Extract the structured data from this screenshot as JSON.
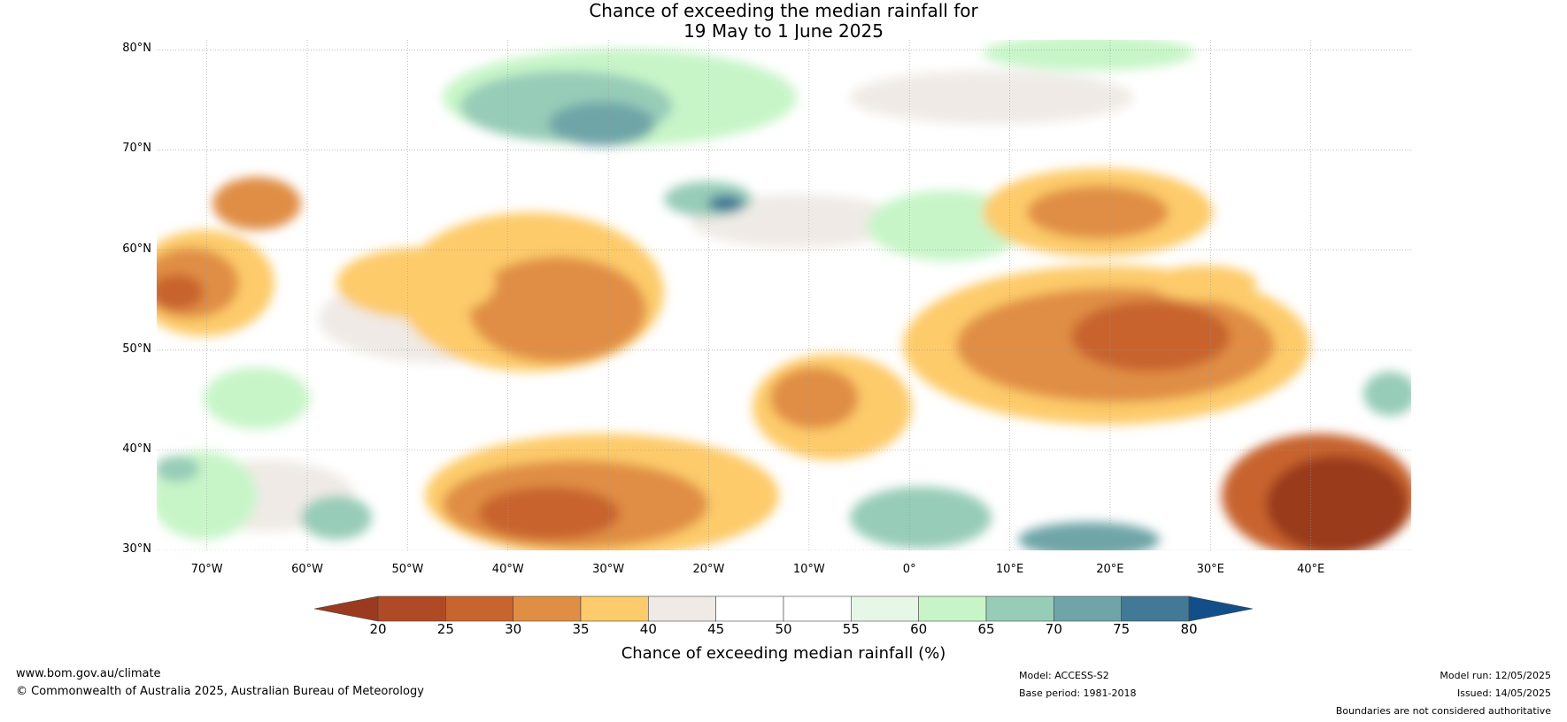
{
  "title": {
    "line1": "Chance of exceeding the median rainfall for",
    "line2": "19 May to 1 June 2025"
  },
  "map": {
    "lat_ticks": [
      "80°N",
      "70°N",
      "60°N",
      "50°N",
      "40°N",
      "30°N"
    ],
    "lon_ticks": [
      "70°W",
      "60°W",
      "50°W",
      "40°W",
      "30°W",
      "20°W",
      "10°W",
      "0°",
      "10°E",
      "20°E",
      "30°E",
      "40°E"
    ],
    "extent": {
      "lon_min": -75,
      "lon_max": 50,
      "lat_min": 30,
      "lat_max": 81
    }
  },
  "colorbar": {
    "label": "Chance of exceeding median rainfall (%)",
    "ticks": [
      "20",
      "25",
      "30",
      "35",
      "40",
      "45",
      "50",
      "55",
      "60",
      "65",
      "70",
      "75",
      "80"
    ],
    "colors": [
      "#9a3b1f",
      "#b04a26",
      "#c8642e",
      "#e08e44",
      "#fdcb6b",
      "#efeae5",
      "#ffffff",
      "#ffffff",
      "#e6f7e7",
      "#c7f5c8",
      "#97ccb8",
      "#6fa5a8",
      "#427996",
      "#124f8a"
    ]
  },
  "footer": {
    "website": "www.bom.gov.au/climate",
    "copyright": "© Commonwealth of Australia 2025, Australian Bureau of Meteorology",
    "model": "Model: ACCESS-S2",
    "base_period": "Base period: 1981-2018",
    "model_run": "Model run: 12/05/2025",
    "issued": "Issued: 14/05/2025",
    "disclaimer": "Boundaries are not considered authoritative"
  }
}
